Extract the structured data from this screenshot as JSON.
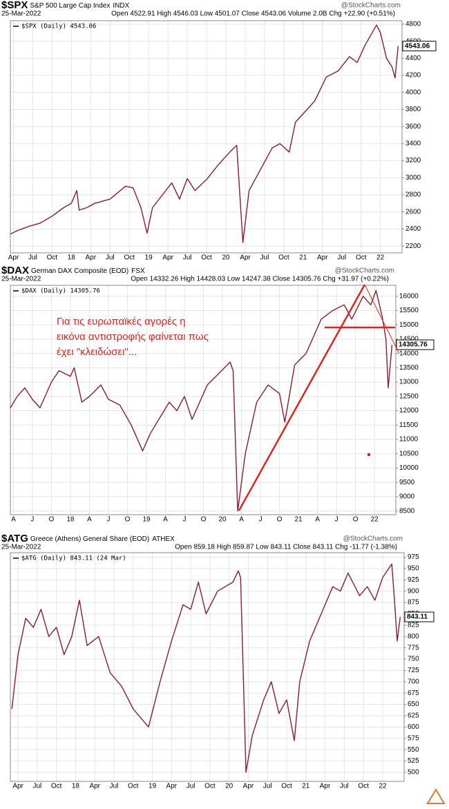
{
  "chart_data": [
    {
      "type": "line",
      "symbol": "$SPX",
      "name": "S&P 500 Large Cap Index",
      "exchange": "INDX",
      "date": "25-Mar-2022",
      "quote": "Open 4522.91  High 4546.03  Low 4501.07  Close 4543.06  Volume 2.0B  Chg +22.90 (+0.51%)",
      "logo": "@StockCharts.com",
      "last_label": "4543.06",
      "xlim": [
        2017.21,
        2022.28
      ],
      "ylim": [
        2120,
        4840
      ],
      "yticks": [
        2200,
        2400,
        2600,
        2800,
        3000,
        3200,
        3400,
        3600,
        3800,
        4000,
        4200,
        4400,
        4600,
        4800
      ],
      "xticks": [
        {
          "value": 2017.25,
          "label": "Apr"
        },
        {
          "value": 2017.5,
          "label": "Jul"
        },
        {
          "value": 2017.75,
          "label": "Oct"
        },
        {
          "value": 2018,
          "label": "18"
        },
        {
          "value": 2018.25,
          "label": "Apr"
        },
        {
          "value": 2018.5,
          "label": "Jul"
        },
        {
          "value": 2018.75,
          "label": "Oct"
        },
        {
          "value": 2019,
          "label": "19"
        },
        {
          "value": 2019.25,
          "label": "Apr"
        },
        {
          "value": 2019.5,
          "label": "Jul"
        },
        {
          "value": 2019.75,
          "label": "Oct"
        },
        {
          "value": 2020,
          "label": "20"
        },
        {
          "value": 2020.25,
          "label": "Apr"
        },
        {
          "value": 2020.5,
          "label": "Jul"
        },
        {
          "value": 2020.75,
          "label": "Oct"
        },
        {
          "value": 2021,
          "label": "21"
        },
        {
          "value": 2021.25,
          "label": "Apr"
        },
        {
          "value": 2021.5,
          "label": "Jul"
        },
        {
          "value": 2021.75,
          "label": "Oct"
        },
        {
          "value": 2022,
          "label": "22"
        }
      ],
      "x": [
        2017.21,
        2017.3,
        2017.45,
        2017.6,
        2017.75,
        2017.9,
        2018.0,
        2018.07,
        2018.1,
        2018.2,
        2018.3,
        2018.5,
        2018.7,
        2018.8,
        2018.9,
        2018.98,
        2019.05,
        2019.3,
        2019.4,
        2019.5,
        2019.6,
        2019.75,
        2019.9,
        2020.05,
        2020.14,
        2020.22,
        2020.3,
        2020.45,
        2020.6,
        2020.7,
        2020.82,
        2020.9,
        2021.0,
        2021.15,
        2021.3,
        2021.45,
        2021.6,
        2021.7,
        2021.8,
        2021.95,
        2022.0,
        2022.08,
        2022.15,
        2022.19,
        2022.23
      ],
      "series": [
        {
          "name": "$SPX (Daily) 4543.06",
          "color": "#8b1a2b",
          "values": [
            2340,
            2380,
            2430,
            2470,
            2550,
            2650,
            2700,
            2850,
            2620,
            2650,
            2700,
            2750,
            2900,
            2880,
            2650,
            2350,
            2650,
            2940,
            2750,
            2990,
            2850,
            2980,
            3150,
            3300,
            3380,
            2240,
            2850,
            3100,
            3350,
            3400,
            3300,
            3650,
            3750,
            3900,
            4180,
            4250,
            4420,
            4350,
            4550,
            4790,
            4700,
            4400,
            4300,
            4170,
            4543
          ]
        }
      ]
    },
    {
      "type": "line",
      "symbol": "$DAX",
      "name": "German DAX Composite (EOD)",
      "exchange": "FSX",
      "date": "25-Mar-2022",
      "quote": "Open 14332.26  High 14428.03  Low 14247.38  Close 14305.76  Chg +31.97 (+0.22%)",
      "logo": "@StockCharts.com",
      "last_label": "14305.76",
      "annotation": [
        "Για τις ευρωπαϊκές αγορές η",
        "εικόνα αντιστροφής φαίνεται πως",
        "έχει \"κλειδώσει\"..."
      ],
      "xlim": [
        2017.21,
        2022.28
      ],
      "ylim": [
        8370,
        16380
      ],
      "yticks": [
        8500,
        9000,
        9500,
        10000,
        10500,
        11000,
        11500,
        12000,
        12500,
        13000,
        13500,
        14000,
        14500,
        15000,
        15500,
        16000
      ],
      "xticks": [
        {
          "value": 2017.25,
          "label": "A"
        },
        {
          "value": 2017.5,
          "label": "J"
        },
        {
          "value": 2017.75,
          "label": "O"
        },
        {
          "value": 2018,
          "label": "18"
        },
        {
          "value": 2018.25,
          "label": "A"
        },
        {
          "value": 2018.5,
          "label": "J"
        },
        {
          "value": 2018.75,
          "label": "O"
        },
        {
          "value": 2019,
          "label": "19"
        },
        {
          "value": 2019.25,
          "label": "A"
        },
        {
          "value": 2019.5,
          "label": "J"
        },
        {
          "value": 2019.75,
          "label": "O"
        },
        {
          "value": 2020,
          "label": "20"
        },
        {
          "value": 2020.25,
          "label": "A"
        },
        {
          "value": 2020.5,
          "label": "J"
        },
        {
          "value": 2020.75,
          "label": "O"
        },
        {
          "value": 2021,
          "label": "21"
        },
        {
          "value": 2021.25,
          "label": "A"
        },
        {
          "value": 2021.5,
          "label": "J"
        },
        {
          "value": 2021.75,
          "label": "O"
        },
        {
          "value": 2022,
          "label": "22"
        }
      ],
      "x": [
        2017.21,
        2017.3,
        2017.4,
        2017.5,
        2017.6,
        2017.75,
        2017.85,
        2018.0,
        2018.05,
        2018.15,
        2018.25,
        2018.4,
        2018.5,
        2018.65,
        2018.8,
        2018.95,
        2019.05,
        2019.3,
        2019.4,
        2019.5,
        2019.6,
        2019.8,
        2019.95,
        2020.1,
        2020.14,
        2020.2,
        2020.3,
        2020.45,
        2020.6,
        2020.75,
        2020.82,
        2020.95,
        2021.1,
        2021.3,
        2021.45,
        2021.6,
        2021.7,
        2021.85,
        2021.95,
        2022.02,
        2022.1,
        2022.15,
        2022.18,
        2022.23
      ],
      "series": [
        {
          "name": "$DAX (Daily) 14305.76",
          "color": "#8b1a2b",
          "values": [
            12100,
            12500,
            12800,
            12400,
            12100,
            13000,
            13400,
            13200,
            13500,
            12300,
            12500,
            12900,
            12400,
            12200,
            11500,
            10600,
            11200,
            12300,
            12000,
            12500,
            11700,
            12900,
            13300,
            13700,
            13400,
            8500,
            10500,
            12300,
            12900,
            12600,
            11600,
            13600,
            14000,
            15200,
            15500,
            15700,
            15200,
            16000,
            15700,
            16200,
            15300,
            14500,
            12800,
            14305
          ]
        }
      ]
    },
    {
      "type": "line",
      "symbol": "$ATG",
      "name": "Greece (Athens) General Share (EOD)",
      "exchange": "ATHEX",
      "date": "25-Mar-2022",
      "quote": "Open 859.18  High 859.87  Low 843.11  Close 843.11  Chg -11.77 (-1.38%)",
      "logo": "@StockCharts.com",
      "last_label": "843.11",
      "xlim": [
        2017.15,
        2022.28
      ],
      "ylim": [
        480,
        985
      ],
      "yticks": [
        500,
        525,
        550,
        575,
        600,
        625,
        650,
        675,
        700,
        725,
        750,
        775,
        800,
        825,
        850,
        875,
        900,
        925,
        950,
        975
      ],
      "xticks": [
        {
          "value": 2017.25,
          "label": "Apr"
        },
        {
          "value": 2017.5,
          "label": "Jul"
        },
        {
          "value": 2017.75,
          "label": "Oct"
        },
        {
          "value": 2018,
          "label": "18"
        },
        {
          "value": 2018.25,
          "label": "Apr"
        },
        {
          "value": 2018.5,
          "label": "Jul"
        },
        {
          "value": 2018.75,
          "label": "Oct"
        },
        {
          "value": 2019,
          "label": "19"
        },
        {
          "value": 2019.25,
          "label": "Apr"
        },
        {
          "value": 2019.5,
          "label": "Jul"
        },
        {
          "value": 2019.75,
          "label": "Oct"
        },
        {
          "value": 2020,
          "label": "20"
        },
        {
          "value": 2020.25,
          "label": "Apr"
        },
        {
          "value": 2020.5,
          "label": "Jul"
        },
        {
          "value": 2020.75,
          "label": "Oct"
        },
        {
          "value": 2021,
          "label": "21"
        },
        {
          "value": 2021.25,
          "label": "Apr"
        },
        {
          "value": 2021.5,
          "label": "Jul"
        },
        {
          "value": 2021.75,
          "label": "Oct"
        },
        {
          "value": 2022,
          "label": "22"
        }
      ],
      "x": [
        2017.17,
        2017.25,
        2017.35,
        2017.45,
        2017.55,
        2017.65,
        2017.75,
        2017.85,
        2017.95,
        2018.05,
        2018.15,
        2018.3,
        2018.45,
        2018.6,
        2018.75,
        2018.85,
        2018.95,
        2019.1,
        2019.25,
        2019.4,
        2019.5,
        2019.6,
        2019.7,
        2019.85,
        2020.05,
        2020.12,
        2020.15,
        2020.22,
        2020.3,
        2020.45,
        2020.55,
        2020.65,
        2020.75,
        2020.85,
        2020.92,
        2021.05,
        2021.2,
        2021.35,
        2021.45,
        2021.55,
        2021.7,
        2021.8,
        2021.9,
        2022.0,
        2022.08,
        2022.12,
        2022.15,
        2022.19,
        2022.23
      ],
      "series": [
        {
          "name": "$ATG (Daily) 843.11 (24 Mar)",
          "color": "#8b1a2b",
          "values": [
            640,
            760,
            840,
            820,
            860,
            800,
            820,
            760,
            800,
            880,
            780,
            800,
            720,
            690,
            640,
            620,
            600,
            700,
            790,
            870,
            860,
            920,
            850,
            900,
            920,
            945,
            930,
            500,
            580,
            660,
            700,
            630,
            660,
            570,
            700,
            790,
            850,
            910,
            900,
            940,
            890,
            910,
            880,
            930,
            950,
            960,
            890,
            790,
            843.11
          ]
        }
      ]
    }
  ]
}
